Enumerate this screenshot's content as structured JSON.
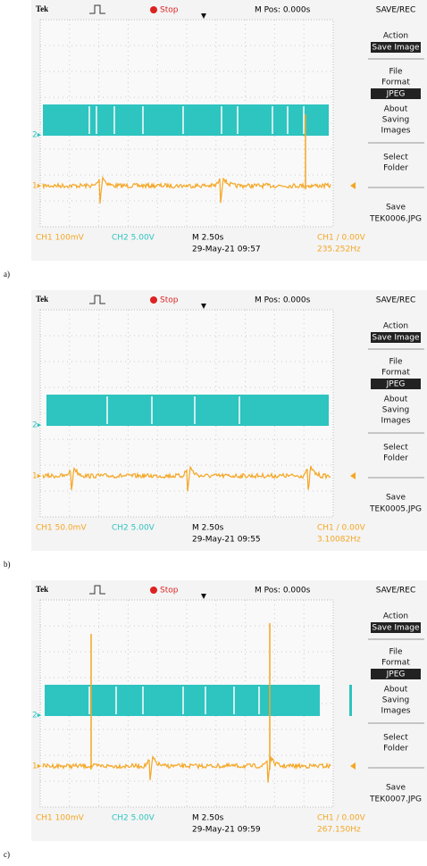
{
  "panels": [
    {
      "label": "a)",
      "header": {
        "brand": "Tek",
        "status": "Stop",
        "position": "M Pos: 0.000s",
        "menu_title": "SAVE/REC"
      },
      "menu": {
        "action": "Action",
        "action_value": "Save Image",
        "file": "File",
        "format": "Format",
        "format_value": "JPEG",
        "about": "About",
        "saving": "Saving",
        "images": "Images",
        "select": "Select",
        "folder": "Folder",
        "save": "Save",
        "save_file": "TEK0006.JPG"
      },
      "footer": {
        "ch1": "CH1 100mV",
        "ch2": "CH2 5.00V",
        "timebase": "M 2.50s",
        "date": "29-May-21 09:57",
        "trigger": "CH1 ∕ 0.00V",
        "frequency": "235.252Hz"
      },
      "markers": {
        "ch2": "2▸",
        "ch1": "1▸"
      }
    },
    {
      "label": "b)",
      "header": {
        "brand": "Tek",
        "status": "Stop",
        "position": "M Pos: 0.000s",
        "menu_title": "SAVE/REC"
      },
      "menu": {
        "action": "Action",
        "action_value": "Save Image",
        "file": "File",
        "format": "Format",
        "format_value": "JPEG",
        "about": "About",
        "saving": "Saving",
        "images": "Images",
        "select": "Select",
        "folder": "Folder",
        "save": "Save",
        "save_file": "TEK0005.JPG"
      },
      "footer": {
        "ch1": "CH1 50.0mV",
        "ch2": "CH2 5.00V",
        "timebase": "M 2.50s",
        "date": "29-May-21 09:55",
        "trigger": "CH1 ∕ 0.00V",
        "frequency": "3.10082Hz"
      },
      "markers": {
        "ch2": "2▸",
        "ch1": "1▸"
      }
    },
    {
      "label": "c)",
      "header": {
        "brand": "Tek",
        "status": "Stop",
        "position": "M Pos: 0.000s",
        "menu_title": "SAVE/REC"
      },
      "menu": {
        "action": "Action",
        "action_value": "Save Image",
        "file": "File",
        "format": "Format",
        "format_value": "JPEG",
        "about": "About",
        "saving": "Saving",
        "images": "Images",
        "select": "Select",
        "folder": "Folder",
        "save": "Save",
        "save_file": "TEK0007.JPG"
      },
      "footer": {
        "ch1": "CH1 100mV",
        "ch2": "CH2 5.00V",
        "timebase": "M 2.50s",
        "date": "29-May-21 09:59",
        "trigger": "CH1 ∕ 0.00V",
        "frequency": "267.150Hz"
      },
      "markers": {
        "ch2": "2▸",
        "ch1": "1▸"
      }
    }
  ]
}
